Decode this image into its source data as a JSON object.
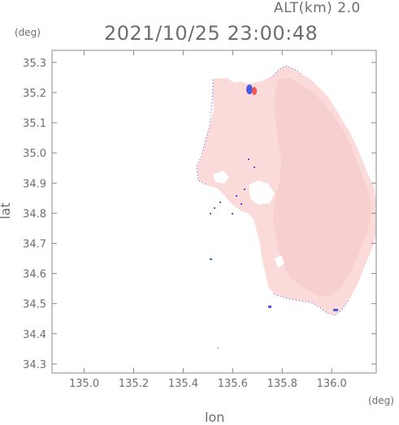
{
  "header": {
    "altitude_label": "ALT(km) 2.0",
    "datetime": "2021/10/25 23:00:48"
  },
  "axes": {
    "x_unit": "(deg)",
    "y_unit": "(deg)",
    "x_title": "lon",
    "y_title": "lat",
    "x_ticks": [
      "135.0",
      "135.2",
      "135.4",
      "135.6",
      "135.8",
      "136.0"
    ],
    "y_ticks": [
      "35.3",
      "35.2",
      "35.1",
      "35.0",
      "34.9",
      "34.8",
      "34.7",
      "34.6",
      "34.5",
      "34.4",
      "34.3"
    ]
  },
  "map": {
    "lon_range": [
      134.87,
      136.18
    ],
    "lat_range": [
      34.27,
      35.34
    ],
    "colors": {
      "field_light": "#fde3e3",
      "field_mid": "#f9d2d2",
      "field_dark": "#f6c8c8",
      "blue_echo": "#4b5be0",
      "red_echo": "#f05555",
      "frame": "#888888"
    }
  }
}
